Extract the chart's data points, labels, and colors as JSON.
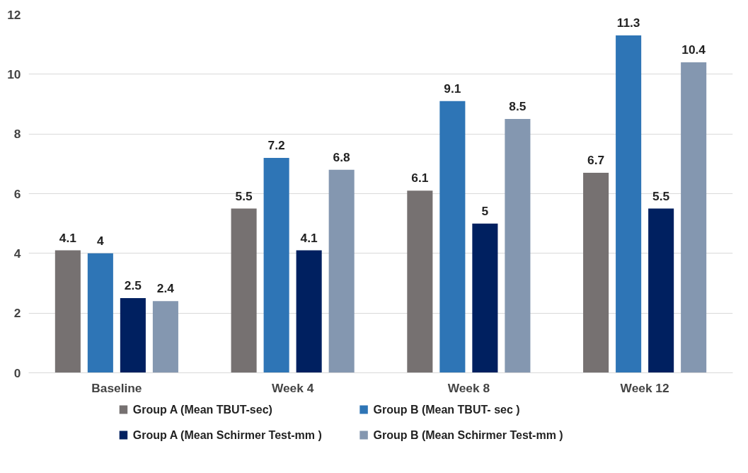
{
  "chart_data": {
    "type": "bar",
    "categories": [
      "Baseline",
      "Week 4",
      "Week 8",
      "Week 12"
    ],
    "series": [
      {
        "name": "Group A (Mean TBUT-sec)",
        "color": "#767171",
        "values": [
          4.1,
          5.5,
          6.1,
          6.7
        ]
      },
      {
        "name": "Group B (Mean TBUT- sec )",
        "color": "#2e75b6",
        "values": [
          4,
          7.2,
          9.1,
          11.3
        ]
      },
      {
        "name": "Group A (Mean Schirmer Test-mm )",
        "color": "#002060",
        "values": [
          2.5,
          4.1,
          5,
          5.5
        ]
      },
      {
        "name": "Group B (Mean Schirmer Test-mm )",
        "color": "#8497b0",
        "values": [
          2.4,
          6.8,
          8.5,
          10.4
        ]
      }
    ],
    "ylim": [
      0,
      12
    ],
    "yticks": [
      0,
      2,
      4,
      6,
      8,
      10,
      12
    ],
    "grid": "y",
    "legend": "bottom",
    "data_labels": true
  }
}
